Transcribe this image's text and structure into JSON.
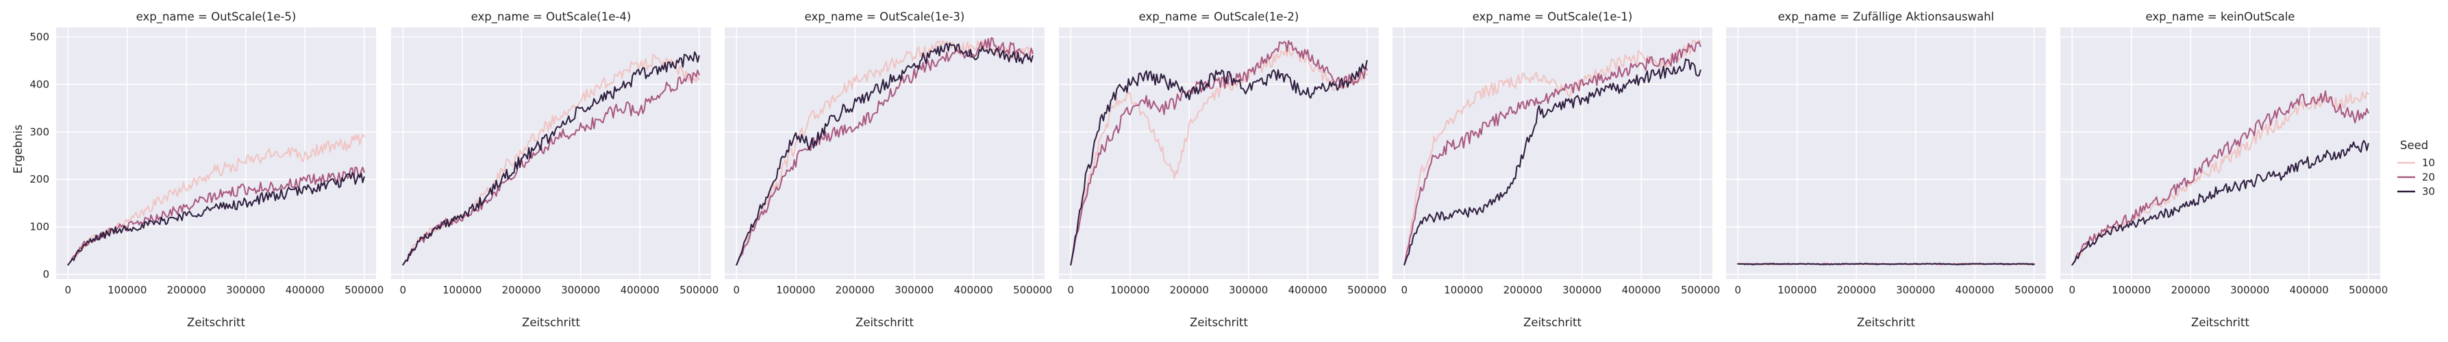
{
  "chart_data": {
    "type": "line",
    "facet_key": "exp_name",
    "xlabel": "Zeitschritt",
    "ylabel": "Ergebnis",
    "xlim": [
      -20000,
      520000
    ],
    "ylim": [
      -10,
      520
    ],
    "xticks": [
      0,
      100000,
      200000,
      300000,
      400000,
      500000
    ],
    "xtick_labels": [
      "0",
      "100000",
      "200000",
      "300000",
      "400000",
      "500000"
    ],
    "yticks": [
      0,
      100,
      200,
      300,
      400,
      500
    ],
    "ytick_labels": [
      "0",
      "100",
      "200",
      "300",
      "400",
      "500"
    ],
    "grid": true,
    "legend": {
      "title": "Seed",
      "placement": "right",
      "entries": [
        {
          "label": "10",
          "color": "#f0c4c2"
        },
        {
          "label": "20",
          "color": "#a8587f"
        },
        {
          "label": "30",
          "color": "#2d1e3e"
        }
      ]
    },
    "x": [
      0,
      25000,
      50000,
      75000,
      100000,
      125000,
      150000,
      175000,
      200000,
      225000,
      250000,
      275000,
      300000,
      325000,
      350000,
      375000,
      400000,
      425000,
      450000,
      475000,
      500000
    ],
    "panels": [
      {
        "title": "exp_name = OutScale(1e-5)",
        "series": [
          {
            "name": "10",
            "values": [
              20,
              60,
              82,
              96,
              110,
              128,
              152,
              170,
              185,
              200,
              218,
              225,
              238,
              245,
              255,
              260,
              250,
              265,
              268,
              275,
              290
            ]
          },
          {
            "name": "20",
            "values": [
              20,
              62,
              80,
              95,
              100,
              112,
              120,
              132,
              140,
              155,
              165,
              172,
              180,
              182,
              185,
              190,
              195,
              200,
              205,
              210,
              215
            ]
          },
          {
            "name": "30",
            "values": [
              20,
              58,
              78,
              90,
              98,
              102,
              108,
              118,
              125,
              132,
              140,
              145,
              150,
              160,
              165,
              172,
              178,
              185,
              192,
              200,
              205
            ]
          }
        ]
      },
      {
        "title": "exp_name = OutScale(1e-4)",
        "series": [
          {
            "name": "10",
            "values": [
              20,
              70,
              95,
              110,
              125,
              150,
              185,
              230,
              260,
              290,
              320,
              345,
              370,
              385,
              410,
              430,
              440,
              450,
              445,
              420,
              410
            ]
          },
          {
            "name": "20",
            "values": [
              20,
              65,
              90,
              110,
              122,
              140,
              165,
              200,
              230,
              255,
              280,
              295,
              305,
              320,
              340,
              350,
              345,
              375,
              395,
              410,
              420
            ]
          },
          {
            "name": "30",
            "values": [
              20,
              68,
              92,
              108,
              120,
              145,
              175,
              210,
              240,
              265,
              295,
              320,
              345,
              360,
              380,
              400,
              420,
              430,
              440,
              450,
              460
            ]
          }
        ]
      },
      {
        "title": "exp_name = OutScale(1e-3)",
        "series": [
          {
            "name": "10",
            "values": [
              20,
              95,
              150,
              210,
              275,
              330,
              350,
              385,
              405,
              420,
              435,
              450,
              465,
              470,
              480,
              470,
              485,
              475,
              470,
              465,
              470
            ]
          },
          {
            "name": "20",
            "values": [
              20,
              90,
              140,
              190,
              240,
              270,
              290,
              300,
              315,
              330,
              370,
              400,
              420,
              440,
              455,
              460,
              470,
              485,
              480,
              470,
              465
            ]
          },
          {
            "name": "30",
            "values": [
              20,
              100,
              160,
              230,
              300,
              270,
              310,
              340,
              360,
              380,
              400,
              420,
              440,
              460,
              475,
              480,
              465,
              470,
              460,
              455,
              460
            ]
          }
        ]
      },
      {
        "title": "exp_name = OutScale(1e-2)",
        "series": [
          {
            "name": "10",
            "values": [
              20,
              180,
              280,
              360,
              380,
              330,
              270,
              200,
              310,
              360,
              380,
              400,
              420,
              440,
              460,
              470,
              450,
              420,
              390,
              410,
              420
            ]
          },
          {
            "name": "20",
            "values": [
              20,
              170,
              260,
              300,
              350,
              370,
              345,
              360,
              390,
              395,
              400,
              410,
              420,
              450,
              480,
              480,
              460,
              440,
              400,
              410,
              430
            ]
          },
          {
            "name": "30",
            "values": [
              20,
              200,
              320,
              380,
              400,
              420,
              410,
              395,
              380,
              400,
              420,
              410,
              390,
              410,
              420,
              400,
              380,
              390,
              400,
              410,
              450
            ]
          }
        ]
      },
      {
        "title": "exp_name = OutScale(1e-1)",
        "series": [
          {
            "name": "10",
            "values": [
              20,
              200,
              280,
              320,
              350,
              380,
              390,
              400,
              410,
              420,
              400,
              380,
              410,
              420,
              440,
              450,
              460,
              440,
              450,
              470,
              490
            ]
          },
          {
            "name": "20",
            "values": [
              20,
              170,
              250,
              270,
              280,
              300,
              320,
              340,
              360,
              360,
              380,
              390,
              400,
              410,
              420,
              430,
              440,
              450,
              450,
              470,
              480
            ]
          },
          {
            "name": "30",
            "values": [
              20,
              110,
              120,
              125,
              128,
              135,
              150,
              175,
              250,
              340,
              350,
              360,
              370,
              380,
              390,
              400,
              410,
              420,
              430,
              440,
              430
            ]
          }
        ]
      },
      {
        "title": "exp_name = Zufällige Aktionsauswahl",
        "series": [
          {
            "name": "10",
            "values": [
              22,
              22,
              21,
              22,
              22,
              21,
              22,
              22,
              22,
              21,
              22,
              22,
              21,
              22,
              22,
              22,
              21,
              22,
              22,
              21,
              21
            ]
          },
          {
            "name": "20",
            "values": [
              22,
              22,
              22,
              21,
              22,
              22,
              22,
              21,
              22,
              22,
              22,
              21,
              22,
              22,
              21,
              22,
              22,
              22,
              21,
              22,
              22
            ]
          },
          {
            "name": "30",
            "values": [
              22,
              21,
              22,
              22,
              22,
              22,
              21,
              22,
              22,
              22,
              21,
              22,
              22,
              22,
              22,
              21,
              22,
              22,
              22,
              22,
              21
            ]
          }
        ]
      },
      {
        "title": "exp_name = keinOutScale",
        "series": [
          {
            "name": "10",
            "values": [
              20,
              65,
              85,
              100,
              115,
              130,
              150,
              170,
              190,
              210,
              230,
              255,
              275,
              300,
              320,
              340,
              360,
              365,
              360,
              370,
              380
            ]
          },
          {
            "name": "20",
            "values": [
              20,
              68,
              88,
              105,
              122,
              140,
              160,
              180,
              205,
              230,
              255,
              275,
              300,
              320,
              340,
              360,
              370,
              375,
              350,
              330,
              340
            ]
          },
          {
            "name": "30",
            "values": [
              20,
              60,
              80,
              95,
              105,
              115,
              125,
              135,
              150,
              165,
              175,
              185,
              195,
              200,
              210,
              220,
              235,
              245,
              255,
              265,
              275
            ]
          }
        ]
      }
    ]
  }
}
